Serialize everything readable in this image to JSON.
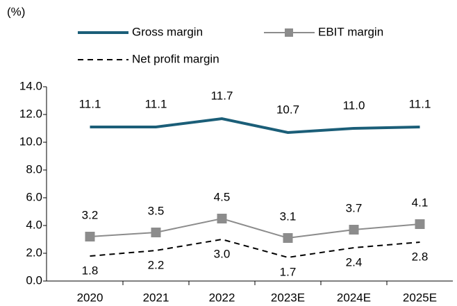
{
  "chart_data": {
    "type": "line",
    "y_label": "(%)",
    "categories": [
      "2020",
      "2021",
      "2022",
      "2023E",
      "2024E",
      "2025E"
    ],
    "series": [
      {
        "name": "Gross margin",
        "color": "#1b5e78",
        "values": [
          11.1,
          11.1,
          11.7,
          10.7,
          11.0,
          11.1
        ],
        "value_labels": [
          "11.1",
          "11.1",
          "11.7",
          "10.7",
          "11.0",
          "11.1"
        ]
      },
      {
        "name": "EBIT margin",
        "color": "#8c8c8c",
        "marker": "square",
        "values": [
          3.2,
          3.5,
          4.5,
          3.1,
          3.7,
          4.1
        ],
        "value_labels": [
          "3.2",
          "3.5",
          "4.5",
          "3.1",
          "3.7",
          "4.1"
        ]
      },
      {
        "name": "Net profit margin",
        "color": "#000000",
        "dash": "dashed",
        "values": [
          1.8,
          2.2,
          3.0,
          1.7,
          2.4,
          2.8
        ],
        "value_labels": [
          "1.8",
          "2.2",
          "3.0",
          "1.7",
          "2.4",
          "2.8"
        ]
      }
    ],
    "ylim": [
      0,
      14
    ],
    "yticks": [
      {
        "value": 0,
        "label": "0.0"
      },
      {
        "value": 2,
        "label": "2.0"
      },
      {
        "value": 4,
        "label": "4.0"
      },
      {
        "value": 6,
        "label": "6.0"
      },
      {
        "value": 8,
        "label": "8.0"
      },
      {
        "value": 10,
        "label": "10.0"
      },
      {
        "value": 12,
        "label": "12.0"
      },
      {
        "value": 14,
        "label": "14.0"
      }
    ],
    "legend": "top"
  }
}
